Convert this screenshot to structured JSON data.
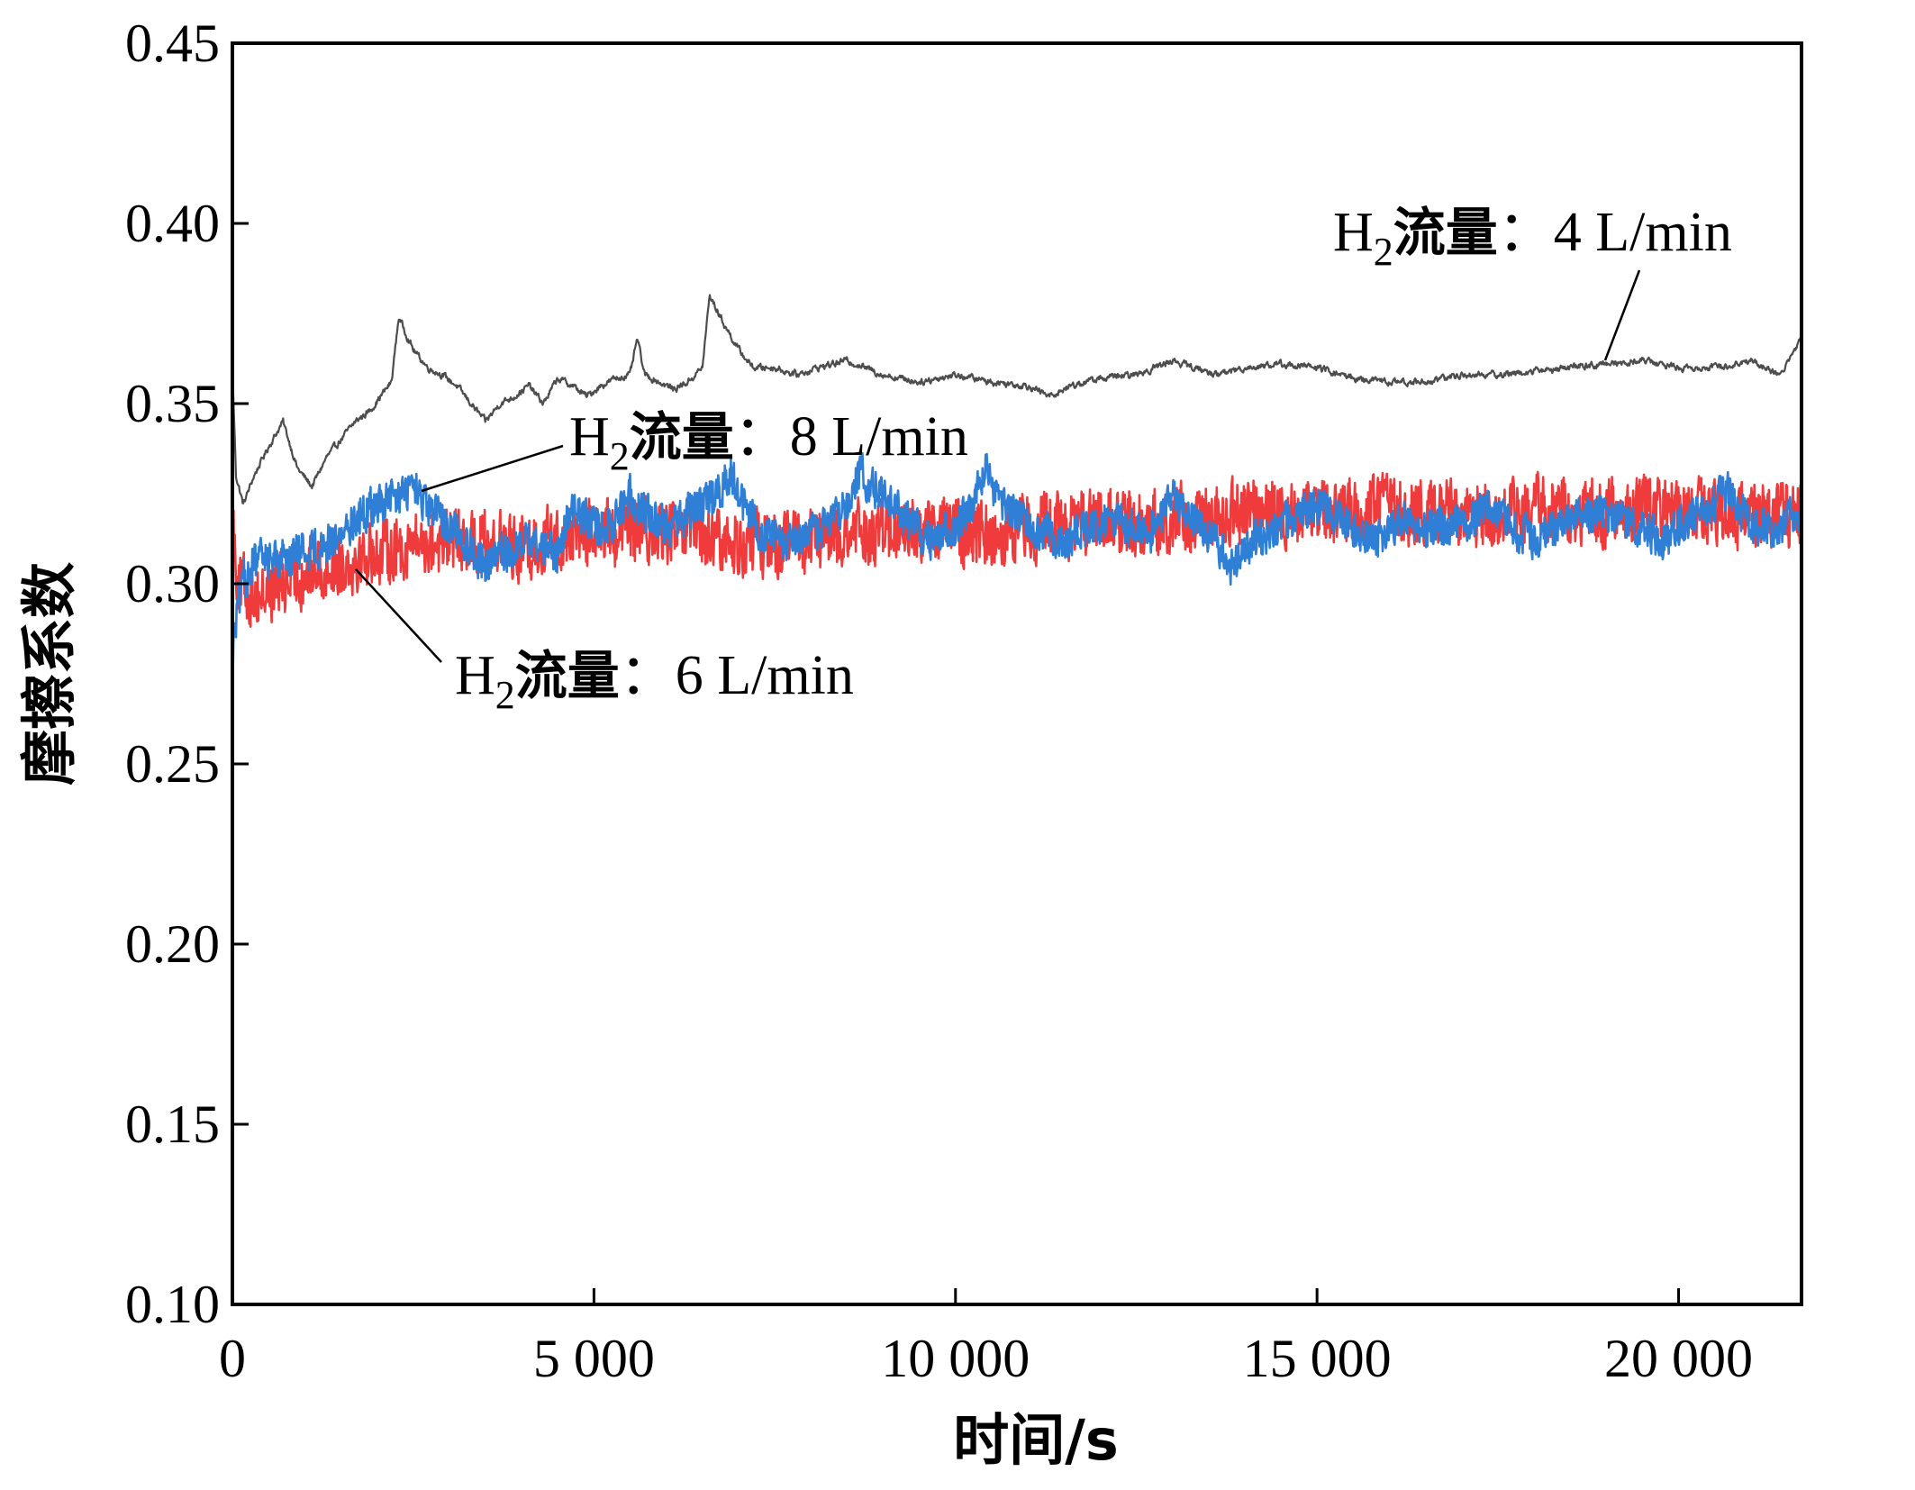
{
  "chart_data": {
    "type": "line",
    "xlabel": "时间/s",
    "ylabel": "摩擦系数",
    "xlim": [
      0,
      21700
    ],
    "ylim": [
      0.1,
      0.45
    ],
    "grid": false,
    "x_ticks": [
      {
        "value": 0,
        "label": "0"
      },
      {
        "value": 5000,
        "label": "5 000"
      },
      {
        "value": 10000,
        "label": "10 000"
      },
      {
        "value": 15000,
        "label": "15 000"
      },
      {
        "value": 20000,
        "label": "20 000"
      }
    ],
    "y_ticks": [
      {
        "value": 0.1,
        "label": "0.10"
      },
      {
        "value": 0.15,
        "label": "0.15"
      },
      {
        "value": 0.2,
        "label": "0.20"
      },
      {
        "value": 0.25,
        "label": "0.25"
      },
      {
        "value": 0.3,
        "label": "0.30"
      },
      {
        "value": 0.35,
        "label": "0.35"
      },
      {
        "value": 0.4,
        "label": "0.40"
      },
      {
        "value": 0.45,
        "label": "0.45"
      }
    ],
    "series": [
      {
        "name": "H2流量：4 L/min",
        "color": "#4d4d4d",
        "noise": 0.0018,
        "x": [
          0,
          50,
          150,
          300,
          500,
          700,
          900,
          1100,
          1300,
          1500,
          1700,
          1900,
          2050,
          2200,
          2300,
          2500,
          2700,
          2900,
          3100,
          3300,
          3500,
          3700,
          3900,
          4100,
          4300,
          4500,
          4700,
          4900,
          5100,
          5300,
          5500,
          5600,
          5700,
          5900,
          6100,
          6300,
          6500,
          6600,
          6800,
          7000,
          7200,
          7500,
          7800,
          8100,
          8500,
          9000,
          9500,
          10000,
          10500,
          11000,
          11300,
          11600,
          12000,
          12500,
          13000,
          13300,
          13600,
          14000,
          14500,
          15000,
          15500,
          16000,
          16500,
          17000,
          17500,
          18000,
          18500,
          19000,
          19500,
          20000,
          20500,
          21000,
          21400,
          21700
        ],
        "y": [
          0.36,
          0.33,
          0.322,
          0.33,
          0.338,
          0.345,
          0.332,
          0.327,
          0.335,
          0.34,
          0.345,
          0.348,
          0.352,
          0.356,
          0.374,
          0.365,
          0.36,
          0.358,
          0.355,
          0.35,
          0.345,
          0.35,
          0.352,
          0.355,
          0.35,
          0.357,
          0.355,
          0.352,
          0.355,
          0.357,
          0.358,
          0.368,
          0.358,
          0.356,
          0.354,
          0.356,
          0.36,
          0.38,
          0.372,
          0.365,
          0.36,
          0.36,
          0.358,
          0.36,
          0.362,
          0.358,
          0.356,
          0.358,
          0.356,
          0.355,
          0.352,
          0.355,
          0.357,
          0.358,
          0.362,
          0.36,
          0.358,
          0.36,
          0.361,
          0.36,
          0.357,
          0.356,
          0.356,
          0.358,
          0.358,
          0.359,
          0.36,
          0.361,
          0.362,
          0.36,
          0.36,
          0.362,
          0.358,
          0.368
        ]
      },
      {
        "name": "H2流量：6 L/min",
        "color": "#ef3b3b",
        "noise": 0.009,
        "x": [
          0,
          80,
          200,
          400,
          700,
          1000,
          1500,
          2000,
          2500,
          3000,
          3500,
          4000,
          4500,
          5000,
          5500,
          6000,
          6500,
          7000,
          7500,
          8000,
          8500,
          9000,
          9500,
          10000,
          10500,
          11000,
          11500,
          12000,
          12500,
          13000,
          13500,
          14000,
          14500,
          15000,
          15500,
          16000,
          16500,
          17000,
          17500,
          18000,
          18500,
          19000,
          19500,
          20000,
          20500,
          21000,
          21700
        ],
        "y": [
          0.32,
          0.3,
          0.298,
          0.297,
          0.3,
          0.303,
          0.306,
          0.309,
          0.311,
          0.312,
          0.312,
          0.31,
          0.313,
          0.314,
          0.315,
          0.314,
          0.312,
          0.311,
          0.311,
          0.312,
          0.313,
          0.315,
          0.315,
          0.315,
          0.314,
          0.316,
          0.316,
          0.317,
          0.317,
          0.318,
          0.319,
          0.32,
          0.32,
          0.32,
          0.32,
          0.321,
          0.32,
          0.32,
          0.32,
          0.321,
          0.32,
          0.32,
          0.32,
          0.32,
          0.32,
          0.318,
          0.32
        ]
      },
      {
        "name": "H2流量：8 L/min",
        "color": "#2f7fd6",
        "noise": 0.0055,
        "x": [
          0,
          50,
          150,
          300,
          500,
          800,
          1100,
          1400,
          1700,
          2000,
          2300,
          2500,
          2700,
          2900,
          3100,
          3300,
          3500,
          3700,
          3900,
          4100,
          4300,
          4500,
          4700,
          4900,
          5100,
          5300,
          5500,
          5700,
          5900,
          6100,
          6300,
          6500,
          6700,
          6900,
          7100,
          7300,
          7500,
          7800,
          8100,
          8400,
          8700,
          9000,
          9300,
          9600,
          9900,
          10200,
          10400,
          10600,
          10900,
          11200,
          11500,
          11800,
          12100,
          12400,
          12700,
          13000,
          13300,
          13600,
          13800,
          14100,
          14400,
          14700,
          15000,
          15300,
          15600,
          15900,
          16200,
          16500,
          16800,
          17100,
          17400,
          17700,
          18000,
          18300,
          18600,
          18900,
          19200,
          19500,
          19800,
          20100,
          20400,
          20700,
          21000,
          21300,
          21700
        ],
        "y": [
          0.28,
          0.29,
          0.3,
          0.306,
          0.307,
          0.308,
          0.31,
          0.312,
          0.318,
          0.322,
          0.324,
          0.327,
          0.32,
          0.318,
          0.315,
          0.31,
          0.305,
          0.308,
          0.31,
          0.312,
          0.31,
          0.308,
          0.322,
          0.318,
          0.315,
          0.318,
          0.325,
          0.32,
          0.318,
          0.315,
          0.32,
          0.322,
          0.325,
          0.33,
          0.32,
          0.315,
          0.312,
          0.31,
          0.315,
          0.32,
          0.33,
          0.325,
          0.318,
          0.312,
          0.315,
          0.32,
          0.332,
          0.322,
          0.318,
          0.315,
          0.312,
          0.315,
          0.318,
          0.316,
          0.314,
          0.325,
          0.318,
          0.312,
          0.305,
          0.312,
          0.315,
          0.318,
          0.322,
          0.318,
          0.315,
          0.312,
          0.318,
          0.315,
          0.316,
          0.318,
          0.322,
          0.316,
          0.312,
          0.315,
          0.318,
          0.32,
          0.318,
          0.315,
          0.312,
          0.318,
          0.322,
          0.325,
          0.316,
          0.315,
          0.32
        ]
      }
    ],
    "annotations": [
      {
        "series": "H2流量：4 L/min",
        "prefix": "H",
        "subscript": "2",
        "cjk": "流量",
        "value": "：4 L/min"
      },
      {
        "series": "H2流量：8 L/min",
        "prefix": "H",
        "subscript": "2",
        "cjk": "流量",
        "value": "：8 L/min"
      },
      {
        "series": "H2流量：6 L/min",
        "prefix": "H",
        "subscript": "2",
        "cjk": "流量",
        "value": "：6 L/min"
      }
    ]
  }
}
